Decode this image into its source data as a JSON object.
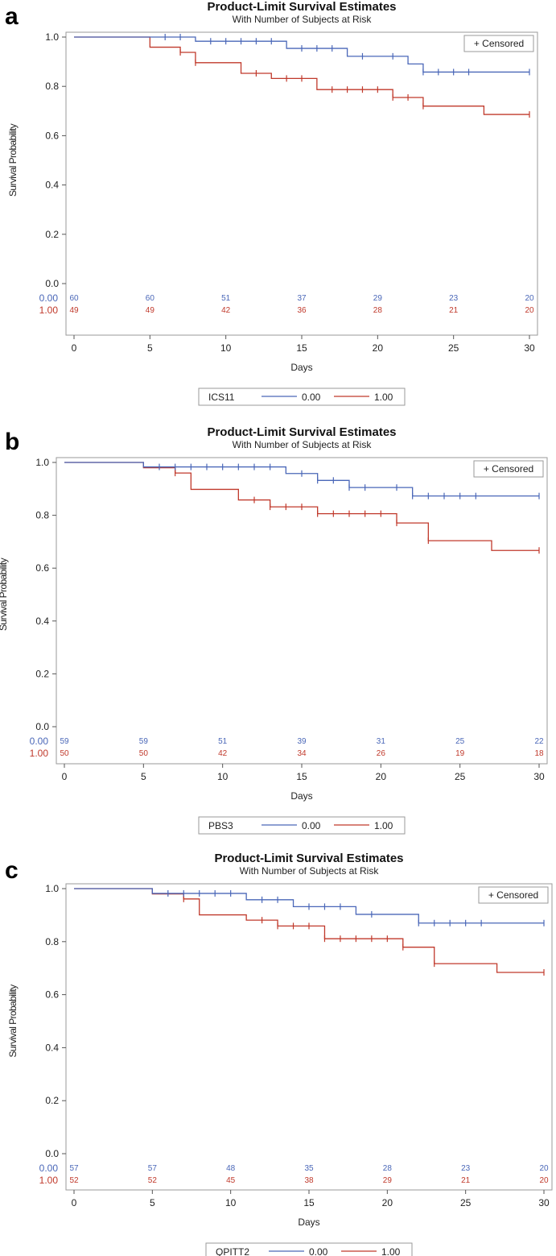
{
  "colors": {
    "group0": "#4a67b8",
    "group1": "#c0392b",
    "frame": "#9a9a9a"
  },
  "censored_label": "+ Censored",
  "chart_data": [
    {
      "panel": "a",
      "type": "line",
      "title": "Product-Limit Survival Estimates",
      "subtitle": "With Number of Subjects at Risk",
      "xlabel": "Days",
      "ylabel": "Survival Probability",
      "xlim": [
        0,
        30
      ],
      "ylim": [
        0,
        1
      ],
      "xticks": [
        "0",
        "5",
        "10",
        "15",
        "20",
        "25",
        "30"
      ],
      "yticks": [
        "0.0",
        "0.2",
        "0.4",
        "0.6",
        "0.8",
        "1.0"
      ],
      "legend_title": "ICS11",
      "series": [
        {
          "name": "0.00",
          "steps": [
            [
              0,
              1.0
            ],
            [
              8,
              0.983
            ],
            [
              14,
              0.954
            ],
            [
              18,
              0.922
            ],
            [
              22,
              0.891
            ],
            [
              23,
              0.858
            ]
          ],
          "censored": [
            [
              6,
              1.0
            ],
            [
              7,
              1.0
            ],
            [
              9,
              0.983
            ],
            [
              10,
              0.983
            ],
            [
              11,
              0.983
            ],
            [
              12,
              0.983
            ],
            [
              13,
              0.983
            ],
            [
              15,
              0.954
            ],
            [
              16,
              0.954
            ],
            [
              17,
              0.954
            ],
            [
              19,
              0.922
            ],
            [
              21,
              0.922
            ],
            [
              23,
              0.858
            ],
            [
              24,
              0.858
            ],
            [
              25,
              0.858
            ],
            [
              26,
              0.858
            ],
            [
              30,
              0.858
            ]
          ],
          "at_risk": [
            "60",
            "60",
            "51",
            "37",
            "29",
            "23",
            "20"
          ]
        },
        {
          "name": "1.00",
          "steps": [
            [
              0,
              1.0
            ],
            [
              5,
              0.959
            ],
            [
              7,
              0.938
            ],
            [
              8,
              0.896
            ],
            [
              11,
              0.853
            ],
            [
              13,
              0.832
            ],
            [
              16,
              0.787
            ],
            [
              21,
              0.755
            ],
            [
              23,
              0.72
            ],
            [
              27,
              0.686
            ]
          ],
          "censored": [
            [
              7,
              0.938
            ],
            [
              8,
              0.896
            ],
            [
              12,
              0.853
            ],
            [
              14,
              0.832
            ],
            [
              15,
              0.832
            ],
            [
              17,
              0.787
            ],
            [
              18,
              0.787
            ],
            [
              19,
              0.787
            ],
            [
              20,
              0.787
            ],
            [
              21,
              0.755
            ],
            [
              22,
              0.755
            ],
            [
              23,
              0.72
            ],
            [
              30,
              0.686
            ]
          ],
          "at_risk": [
            "49",
            "49",
            "42",
            "36",
            "28",
            "21",
            "20"
          ]
        }
      ]
    },
    {
      "panel": "b",
      "type": "line",
      "title": "Product-Limit Survival Estimates",
      "subtitle": "With Number of Subjects at Risk",
      "xlabel": "Days",
      "ylabel": "Survival Probability",
      "xlim": [
        0,
        30
      ],
      "ylim": [
        0,
        1
      ],
      "xticks": [
        "0",
        "5",
        "10",
        "15",
        "20",
        "25",
        "30"
      ],
      "yticks": [
        "0.0",
        "0.2",
        "0.4",
        "0.6",
        "0.8",
        "1.0"
      ],
      "legend_title": "PBS3",
      "series": [
        {
          "name": "0.00",
          "steps": [
            [
              0,
              1.0
            ],
            [
              5,
              0.983
            ],
            [
              14,
              0.958
            ],
            [
              16,
              0.932
            ],
            [
              18,
              0.905
            ],
            [
              22,
              0.873
            ]
          ],
          "censored": [
            [
              6,
              0.983
            ],
            [
              7,
              0.983
            ],
            [
              8,
              0.983
            ],
            [
              9,
              0.983
            ],
            [
              10,
              0.983
            ],
            [
              11,
              0.983
            ],
            [
              12,
              0.983
            ],
            [
              13,
              0.983
            ],
            [
              15,
              0.958
            ],
            [
              16,
              0.932
            ],
            [
              17,
              0.932
            ],
            [
              18,
              0.905
            ],
            [
              19,
              0.905
            ],
            [
              21,
              0.905
            ],
            [
              22,
              0.873
            ],
            [
              23,
              0.873
            ],
            [
              24,
              0.873
            ],
            [
              25,
              0.873
            ],
            [
              26,
              0.873
            ],
            [
              30,
              0.873
            ]
          ],
          "at_risk": [
            "59",
            "59",
            "51",
            "39",
            "31",
            "25",
            "22"
          ]
        },
        {
          "name": "1.00",
          "steps": [
            [
              0,
              1.0
            ],
            [
              5,
              0.98
            ],
            [
              7,
              0.96
            ],
            [
              8,
              0.898
            ],
            [
              11,
              0.858
            ],
            [
              13,
              0.832
            ],
            [
              16,
              0.806
            ],
            [
              21,
              0.771
            ],
            [
              23,
              0.704
            ],
            [
              27,
              0.667
            ]
          ],
          "censored": [
            [
              7,
              0.96
            ],
            [
              12,
              0.858
            ],
            [
              13,
              0.832
            ],
            [
              14,
              0.832
            ],
            [
              15,
              0.832
            ],
            [
              16,
              0.806
            ],
            [
              17,
              0.806
            ],
            [
              18,
              0.806
            ],
            [
              19,
              0.806
            ],
            [
              20,
              0.806
            ],
            [
              21,
              0.771
            ],
            [
              23,
              0.704
            ],
            [
              30,
              0.667
            ]
          ],
          "at_risk": [
            "50",
            "50",
            "42",
            "34",
            "26",
            "19",
            "18"
          ]
        }
      ]
    },
    {
      "panel": "c",
      "type": "line",
      "title": "Product-Limit Survival Estimates",
      "subtitle": "With Number of Subjects at Risk",
      "xlabel": "Days",
      "ylabel": "Survival Probability",
      "xlim": [
        0,
        30
      ],
      "ylim": [
        0,
        1
      ],
      "xticks": [
        "0",
        "5",
        "10",
        "15",
        "20",
        "25",
        "30"
      ],
      "yticks": [
        "0.0",
        "0.2",
        "0.4",
        "0.6",
        "0.8",
        "1.0"
      ],
      "legend_title": "QPITT2",
      "series": [
        {
          "name": "0.00",
          "steps": [
            [
              0,
              1.0
            ],
            [
              5,
              0.982
            ],
            [
              11,
              0.958
            ],
            [
              14,
              0.932
            ],
            [
              18,
              0.903
            ],
            [
              22,
              0.87
            ]
          ],
          "censored": [
            [
              6,
              0.982
            ],
            [
              7,
              0.982
            ],
            [
              8,
              0.982
            ],
            [
              9,
              0.982
            ],
            [
              10,
              0.982
            ],
            [
              12,
              0.958
            ],
            [
              13,
              0.958
            ],
            [
              15,
              0.932
            ],
            [
              16,
              0.932
            ],
            [
              17,
              0.932
            ],
            [
              19,
              0.903
            ],
            [
              22,
              0.87
            ],
            [
              23,
              0.87
            ],
            [
              24,
              0.87
            ],
            [
              25,
              0.87
            ],
            [
              26,
              0.87
            ],
            [
              30,
              0.87
            ]
          ],
          "at_risk": [
            "57",
            "57",
            "48",
            "35",
            "28",
            "23",
            "20"
          ]
        },
        {
          "name": "1.00",
          "steps": [
            [
              0,
              1.0
            ],
            [
              5,
              0.98
            ],
            [
              7,
              0.961
            ],
            [
              8,
              0.901
            ],
            [
              11,
              0.881
            ],
            [
              13,
              0.859
            ],
            [
              16,
              0.811
            ],
            [
              21,
              0.779
            ],
            [
              23,
              0.717
            ],
            [
              27,
              0.684
            ]
          ],
          "censored": [
            [
              7,
              0.961
            ],
            [
              12,
              0.881
            ],
            [
              13,
              0.859
            ],
            [
              14,
              0.859
            ],
            [
              15,
              0.859
            ],
            [
              16,
              0.811
            ],
            [
              17,
              0.811
            ],
            [
              18,
              0.811
            ],
            [
              19,
              0.811
            ],
            [
              20,
              0.811
            ],
            [
              21,
              0.779
            ],
            [
              23,
              0.717
            ],
            [
              30,
              0.684
            ]
          ],
          "at_risk": [
            "52",
            "52",
            "45",
            "38",
            "29",
            "21",
            "20"
          ]
        }
      ]
    }
  ]
}
